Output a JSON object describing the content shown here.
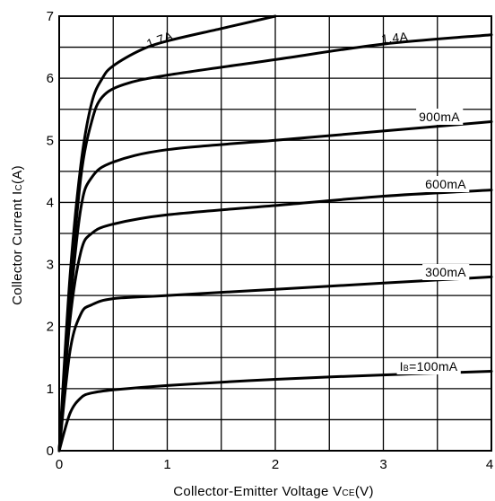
{
  "chart_data": {
    "type": "line",
    "xlabel": {
      "main": "Collector-Emitter Voltage V",
      "sub": "CE",
      "unit": "(V)"
    },
    "ylabel": {
      "main": "Collector Current I",
      "sub": "C",
      "unit": "(A)"
    },
    "xlim": [
      0,
      4
    ],
    "ylim": [
      0,
      7
    ],
    "x_ticks": [
      "0",
      "1",
      "2",
      "3",
      "4"
    ],
    "y_ticks": [
      "0",
      "1",
      "2",
      "3",
      "4",
      "5",
      "6",
      "7"
    ],
    "grid": true,
    "series": [
      {
        "name": "1.7A",
        "label_parts": {
          "main": "1.7A",
          "sub": ""
        },
        "points": [
          [
            0,
            0
          ],
          [
            0.1,
            2.8
          ],
          [
            0.2,
            4.6
          ],
          [
            0.3,
            5.6
          ],
          [
            0.4,
            6.0
          ],
          [
            0.5,
            6.2
          ],
          [
            0.75,
            6.45
          ],
          [
            1.0,
            6.6
          ],
          [
            1.5,
            6.8
          ],
          [
            2.0,
            7.0
          ]
        ]
      },
      {
        "name": "1.4A",
        "label_parts": {
          "main": "1.4A",
          "sub": ""
        },
        "points": [
          [
            0,
            0
          ],
          [
            0.1,
            2.5
          ],
          [
            0.2,
            4.4
          ],
          [
            0.3,
            5.3
          ],
          [
            0.4,
            5.7
          ],
          [
            0.6,
            5.9
          ],
          [
            1.0,
            6.05
          ],
          [
            2.0,
            6.3
          ],
          [
            3.0,
            6.55
          ],
          [
            4.0,
            6.7
          ]
        ]
      },
      {
        "name": "900mA",
        "label_parts": {
          "main": "900mA",
          "sub": ""
        },
        "points": [
          [
            0,
            0
          ],
          [
            0.1,
            2.3
          ],
          [
            0.2,
            3.9
          ],
          [
            0.3,
            4.4
          ],
          [
            0.5,
            4.65
          ],
          [
            1.0,
            4.85
          ],
          [
            2.0,
            5.0
          ],
          [
            3.0,
            5.15
          ],
          [
            4.0,
            5.3
          ]
        ]
      },
      {
        "name": "600mA",
        "label_parts": {
          "main": "600mA",
          "sub": ""
        },
        "points": [
          [
            0,
            0
          ],
          [
            0.1,
            2.1
          ],
          [
            0.2,
            3.2
          ],
          [
            0.3,
            3.5
          ],
          [
            0.5,
            3.65
          ],
          [
            1.0,
            3.8
          ],
          [
            2.0,
            3.95
          ],
          [
            3.0,
            4.1
          ],
          [
            4.0,
            4.2
          ]
        ]
      },
      {
        "name": "300mA",
        "label_parts": {
          "main": "300mA",
          "sub": ""
        },
        "points": [
          [
            0,
            0
          ],
          [
            0.1,
            1.6
          ],
          [
            0.2,
            2.2
          ],
          [
            0.3,
            2.35
          ],
          [
            0.5,
            2.45
          ],
          [
            1.0,
            2.5
          ],
          [
            2.0,
            2.6
          ],
          [
            3.0,
            2.7
          ],
          [
            4.0,
            2.8
          ]
        ]
      },
      {
        "name": "IB=100mA",
        "label_parts": {
          "main": "I",
          "sub": "B",
          "rest": "=100mA"
        },
        "points": [
          [
            0,
            0
          ],
          [
            0.1,
            0.6
          ],
          [
            0.2,
            0.85
          ],
          [
            0.3,
            0.93
          ],
          [
            0.5,
            0.98
          ],
          [
            1.0,
            1.05
          ],
          [
            2.0,
            1.15
          ],
          [
            3.0,
            1.22
          ],
          [
            4.0,
            1.28
          ]
        ]
      }
    ]
  }
}
